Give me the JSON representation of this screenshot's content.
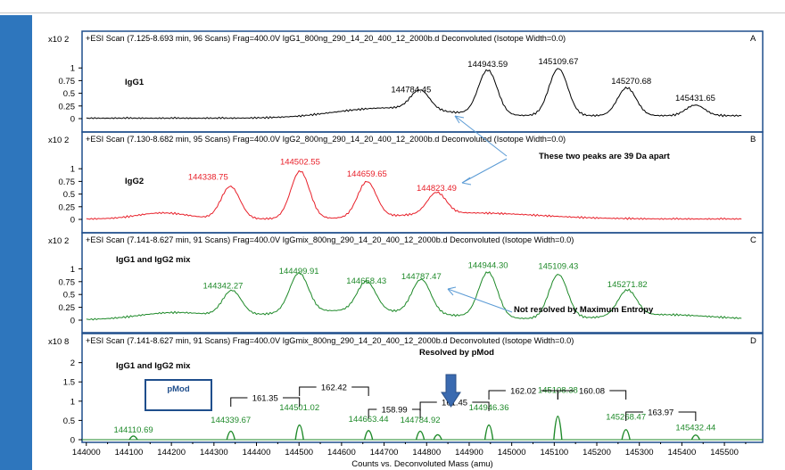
{
  "colors": {
    "sidebar": "#2e76bd",
    "panel_border": "#1f4e8c",
    "series_a": "#000000",
    "series_b": "#e8202a",
    "series_c": "#1f8a2a",
    "series_d": "#1f8a2a",
    "arrow": "#5b9bd5",
    "down_arrow": "#3a6ab0"
  },
  "chart_data": [
    {
      "type": "line",
      "panel": "A",
      "scan_header": "+ESI Scan (7.125-8.693 min, 96 Scans) Frag=400.0V IgG1_800ng_290_14_20_400_12_2000b.d  Deconvoluted (Isotope Width=0.0)",
      "sample_label": "IgG1",
      "y_multiplier": "x10 2",
      "yticks": [
        "1",
        "0.75",
        "0.5",
        "0.25",
        "0"
      ],
      "ylim": [
        0,
        1.25
      ],
      "peak_labels": [
        {
          "mass": 144784.45,
          "label": "144784.45",
          "height": 0.38
        },
        {
          "mass": 144943.59,
          "label": "144943.59",
          "height": 0.88
        },
        {
          "mass": 145109.67,
          "label": "145109.67",
          "height": 0.93
        },
        {
          "mass": 145270.68,
          "label": "145270.68",
          "height": 0.55
        },
        {
          "mass": 145431.65,
          "label": "145431.65",
          "height": 0.21
        }
      ],
      "baseline_end": 0.06,
      "color_key": "series_a"
    },
    {
      "type": "line",
      "panel": "B",
      "scan_header": "+ESI Scan (7.130-8.682 min, 95 Scans) Frag=400.0V IgG2_800ng_290_14_20_400_12_2000b.d  Deconvoluted (Isotope Width=0.0)",
      "sample_label": "IgG2",
      "y_multiplier": "x10 2",
      "yticks": [
        "1",
        "0.75",
        "0.5",
        "0.25",
        "0"
      ],
      "ylim": [
        0,
        1.25
      ],
      "peak_labels": [
        {
          "mass": 144338.75,
          "label": "144338.75",
          "height": 0.64
        },
        {
          "mass": 144502.55,
          "label": "144502.55",
          "height": 0.94
        },
        {
          "mass": 144659.65,
          "label": "144659.65",
          "height": 0.7
        },
        {
          "mass": 144823.49,
          "label": "144823.49",
          "height": 0.42
        }
      ],
      "annotation": "These two peaks are 39 Da apart",
      "color_key": "series_b"
    },
    {
      "type": "line",
      "panel": "C",
      "scan_header": "+ESI Scan (7.141-8.627 min, 91 Scans) Frag=400.0V IgGmix_800ng_290_14_20_400_12_2000b.d  Deconvoluted (Isotope Width=0.0)",
      "sample_label": "IgG1 and IgG2 mix",
      "y_multiplier": "x10 2",
      "yticks": [
        "1",
        "0.75",
        "0.5",
        "0.25",
        "0"
      ],
      "ylim": [
        0,
        1.25
      ],
      "peak_labels": [
        {
          "mass": 144342.27,
          "label": "144342.27",
          "height": 0.48
        },
        {
          "mass": 144499.91,
          "label": "144499.91",
          "height": 0.76
        },
        {
          "mass": 144658.43,
          "label": "144658.43",
          "height": 0.57
        },
        {
          "mass": 144787.47,
          "label": "144787.47",
          "height": 0.66
        },
        {
          "mass": 144944.3,
          "label": "144944.30",
          "height": 0.88
        },
        {
          "mass": 145109.43,
          "label": "145109.43",
          "height": 0.86
        },
        {
          "mass": 145271.82,
          "label": "145271.82",
          "height": 0.5
        }
      ],
      "annotation": "Not resolved by Maximum Entropy",
      "color_key": "series_c"
    },
    {
      "type": "bar",
      "panel": "D",
      "scan_header": "+ESI Scan (7.141-8.627 min, 91 Scans) Frag=400.0V IgGmix_800ng_290_14_20_400_12_2000b.d  Deconvoluted (Isotope Width=0.0)",
      "sample_label": "IgG1 and IgG2 mix",
      "subtitle": "Resolved by pMod",
      "box_label": "pMod",
      "y_multiplier": "x10 8",
      "yticks": [
        "2",
        "1.5",
        "1",
        "0.5",
        "0"
      ],
      "ylim": [
        0,
        2.2
      ],
      "peaks": [
        {
          "mass": 144110.69,
          "label": "144110.69",
          "height": 0.05
        },
        {
          "mass": 144339.67,
          "label": "144339.67",
          "height": 0.3
        },
        {
          "mass": 144501.02,
          "label": "144501.02",
          "height": 0.62
        },
        {
          "mass": 144663.44,
          "label": "144663.44",
          "height": 0.33
        },
        {
          "mass": 144784.92,
          "label": "144784.92",
          "height": 0.3
        },
        {
          "mass": 144826.0,
          "label": "",
          "height": 0.12
        },
        {
          "mass": 144946.36,
          "label": "144946.36",
          "height": 0.62
        },
        {
          "mass": 145108.38,
          "label": "145108.38",
          "height": 1.08
        },
        {
          "mass": 145268.47,
          "label": "145268.47",
          "height": 0.38
        },
        {
          "mass": 145432.44,
          "label": "145432.44",
          "height": 0.1
        }
      ],
      "spacings": [
        "161.35",
        "162.42",
        "158.99",
        "161.45",
        "162.02",
        "160.08",
        "163.97"
      ],
      "color_key": "series_d"
    }
  ],
  "x_axis": {
    "label": "Counts vs. Deconvoluted Mass (amu)",
    "ticks": [
      "144000",
      "144100",
      "144200",
      "144300",
      "144400",
      "144500",
      "144600",
      "144700",
      "144800",
      "144900",
      "145000",
      "145100",
      "145200",
      "145300",
      "145400",
      "145500"
    ],
    "range": [
      143990,
      145590
    ]
  }
}
